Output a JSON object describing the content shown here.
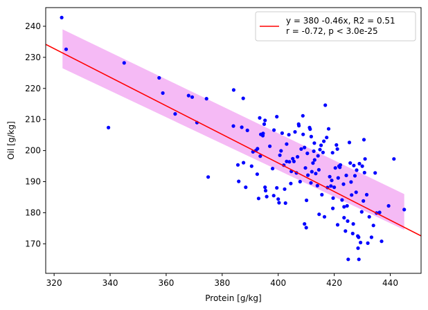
{
  "chart_data": {
    "type": "scatter",
    "title": "",
    "xlabel": "Protein [g/kg]",
    "ylabel": "Oil [g/kg]",
    "xlim": [
      317,
      451
    ],
    "ylim": [
      160.5,
      246
    ],
    "xticks": [
      320,
      340,
      360,
      380,
      400,
      420,
      440
    ],
    "yticks": [
      170,
      180,
      190,
      200,
      210,
      220,
      230,
      240
    ],
    "grid": false,
    "legend_position": "top-right",
    "legend": {
      "line1": "y = 380 -0.46x, R2 = 0.51",
      "line2": "r = -0.72, p < 3.0e-25"
    },
    "fit": {
      "intercept": 380,
      "slope": -0.46,
      "color": "#ff0000"
    },
    "confidence_band": {
      "color": "#f4b3f4",
      "x_range": [
        323,
        445
      ],
      "upper": [
        239,
        186
      ],
      "lower": [
        226.5,
        174.5
      ]
    },
    "point_color": "#0000ff",
    "points": [
      [
        322.7,
        242.8
      ],
      [
        324.3,
        232.6
      ],
      [
        339.4,
        207.4
      ],
      [
        345.0,
        228.2
      ],
      [
        357.5,
        223.4
      ],
      [
        358.8,
        218.5
      ],
      [
        363.2,
        211.8
      ],
      [
        368.0,
        217.7
      ],
      [
        369.3,
        217.2
      ],
      [
        371.0,
        209.0
      ],
      [
        374.4,
        216.7
      ],
      [
        375.0,
        191.5
      ],
      [
        384.1,
        219.5
      ],
      [
        384.0,
        207.9
      ],
      [
        385.6,
        195.4
      ],
      [
        385.9,
        190.1
      ],
      [
        387.5,
        216.8
      ],
      [
        387.0,
        207.5
      ],
      [
        387.6,
        196.1
      ],
      [
        388.4,
        188.2
      ],
      [
        389.0,
        206.5
      ],
      [
        390.5,
        195.0
      ],
      [
        391.0,
        199.6
      ],
      [
        392.0,
        200.0
      ],
      [
        392.5,
        192.4
      ],
      [
        392.6,
        200.6
      ],
      [
        393.4,
        210.5
      ],
      [
        393.0,
        184.6
      ],
      [
        393.6,
        198.2
      ],
      [
        393.8,
        205.2
      ],
      [
        394.6,
        205.5
      ],
      [
        394.5,
        204.8
      ],
      [
        395.0,
        208.5
      ],
      [
        395.3,
        209.7
      ],
      [
        395.3,
        188.2
      ],
      [
        395.5,
        187.1
      ],
      [
        395.9,
        185.2
      ],
      [
        397.0,
        201.4
      ],
      [
        398.0,
        194.2
      ],
      [
        398.5,
        206.6
      ],
      [
        398.4,
        185.5
      ],
      [
        399.5,
        210.9
      ],
      [
        399.5,
        188.0
      ],
      [
        400.0,
        184.4
      ],
      [
        400.3,
        183.2
      ],
      [
        400.6,
        198.5
      ],
      [
        401.0,
        199.9
      ],
      [
        401.4,
        205.6
      ],
      [
        402.0,
        195.3
      ],
      [
        402.3,
        187.6
      ],
      [
        402.6,
        183.1
      ],
      [
        403.0,
        202.1
      ],
      [
        403.0,
        196.5
      ],
      [
        403.8,
        205.1
      ],
      [
        404.0,
        196.4
      ],
      [
        404.5,
        189.4
      ],
      [
        404.7,
        193.3
      ],
      [
        405.2,
        197.4
      ],
      [
        405.6,
        196.5
      ],
      [
        406.0,
        206.0
      ],
      [
        406.5,
        192.8
      ],
      [
        406.9,
        198.0
      ],
      [
        407.3,
        208.5
      ],
      [
        407.4,
        208.0
      ],
      [
        407.8,
        190.0
      ],
      [
        408.2,
        200.5
      ],
      [
        408.8,
        211.2
      ],
      [
        408.9,
        205.2
      ],
      [
        409.4,
        176.4
      ],
      [
        409.4,
        201.0
      ],
      [
        409.7,
        194.4
      ],
      [
        410.0,
        175.2
      ],
      [
        410.1,
        184.0
      ],
      [
        410.4,
        199.1
      ],
      [
        410.6,
        192.1
      ],
      [
        411.2,
        207.4
      ],
      [
        411.4,
        206.9
      ],
      [
        411.7,
        189.6
      ],
      [
        411.8,
        204.5
      ],
      [
        412.0,
        193.2
      ],
      [
        412.4,
        196.0
      ],
      [
        412.7,
        199.8
      ],
      [
        412.9,
        202.4
      ],
      [
        413.0,
        197.0
      ],
      [
        413.4,
        192.6
      ],
      [
        414.0,
        188.7
      ],
      [
        414.2,
        198.3
      ],
      [
        414.5,
        193.8
      ],
      [
        414.6,
        179.5
      ],
      [
        414.9,
        200.3
      ],
      [
        415.3,
        201.7
      ],
      [
        415.6,
        185.8
      ],
      [
        416.0,
        199.4
      ],
      [
        416.3,
        203.0
      ],
      [
        416.5,
        178.7
      ],
      [
        416.8,
        214.6
      ],
      [
        417.3,
        204.2
      ],
      [
        417.6,
        188.1
      ],
      [
        418.0,
        207.0
      ],
      [
        418.4,
        191.6
      ],
      [
        418.8,
        188.6
      ],
      [
        419.1,
        190.4
      ],
      [
        419.4,
        199.3
      ],
      [
        419.5,
        181.4
      ],
      [
        419.6,
        184.7
      ],
      [
        420.0,
        188.2
      ],
      [
        420.4,
        194.4
      ],
      [
        420.8,
        201.8
      ],
      [
        421.1,
        200.5
      ],
      [
        421.2,
        176.1
      ],
      [
        421.4,
        191.2
      ],
      [
        421.7,
        195.0
      ],
      [
        422.0,
        194.6
      ],
      [
        422.2,
        195.4
      ],
      [
        422.8,
        184.1
      ],
      [
        423.3,
        189.2
      ],
      [
        423.5,
        178.4
      ],
      [
        423.5,
        181.9
      ],
      [
        424.0,
        174.1
      ],
      [
        424.3,
        192.0
      ],
      [
        424.6,
        182.2
      ],
      [
        424.8,
        177.3
      ],
      [
        425.0,
        165.0
      ],
      [
        425.4,
        202.6
      ],
      [
        425.7,
        196.0
      ],
      [
        426.0,
        189.9
      ],
      [
        426.2,
        185.7
      ],
      [
        426.6,
        173.3
      ],
      [
        426.8,
        176.4
      ],
      [
        427.0,
        195.2
      ],
      [
        427.4,
        191.9
      ],
      [
        427.8,
        186.6
      ],
      [
        428.0,
        193.7
      ],
      [
        428.4,
        172.5
      ],
      [
        428.5,
        168.6
      ],
      [
        428.7,
        172.1
      ],
      [
        428.8,
        165.0
      ],
      [
        429.0,
        195.8
      ],
      [
        429.4,
        170.4
      ],
      [
        429.8,
        180.3
      ],
      [
        430.0,
        195.0
      ],
      [
        430.4,
        183.8
      ],
      [
        430.6,
        203.5
      ],
      [
        430.8,
        192.9
      ],
      [
        431.0,
        197.3
      ],
      [
        431.6,
        185.8
      ],
      [
        432.0,
        170.2
      ],
      [
        432.5,
        178.7
      ],
      [
        433.3,
        172.1
      ],
      [
        434.0,
        175.9
      ],
      [
        434.6,
        192.8
      ],
      [
        435.1,
        179.9
      ],
      [
        436.2,
        180.1
      ],
      [
        436.9,
        170.8
      ],
      [
        439.4,
        182.2
      ],
      [
        441.3,
        197.3
      ],
      [
        445.0,
        181.0
      ]
    ]
  }
}
